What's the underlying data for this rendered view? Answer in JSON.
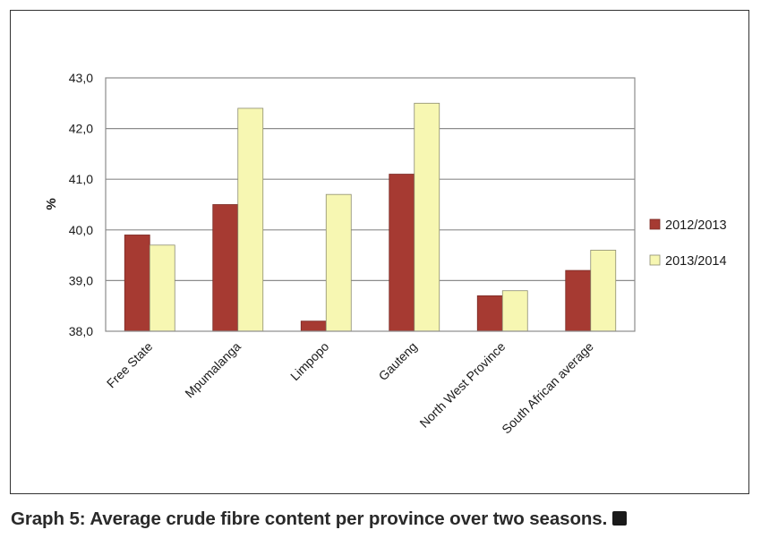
{
  "caption": {
    "text": "Graph 5: Average crude fibre content per province over two seasons."
  },
  "chart_data": {
    "type": "bar",
    "title": "",
    "xlabel": "",
    "ylabel": "%",
    "ylim": [
      38.0,
      43.0
    ],
    "yticks": [
      38.0,
      39.0,
      40.0,
      41.0,
      42.0,
      43.0
    ],
    "ytick_labels": [
      "38,0",
      "39,0",
      "40,0",
      "41,0",
      "42,0",
      "43,0"
    ],
    "grid": true,
    "legend_position": "right",
    "categories": [
      "Free State",
      "Mpumalanga",
      "Limpopo",
      "Gauteng",
      "North West Province",
      "South African average"
    ],
    "series": [
      {
        "name": "2012/2013",
        "color": "#A63A32",
        "values": [
          39.9,
          40.5,
          38.2,
          41.1,
          38.7,
          39.2
        ]
      },
      {
        "name": "2013/2014",
        "color": "#F7F7B2",
        "values": [
          39.7,
          42.4,
          40.7,
          42.5,
          38.8,
          39.6
        ]
      }
    ]
  }
}
